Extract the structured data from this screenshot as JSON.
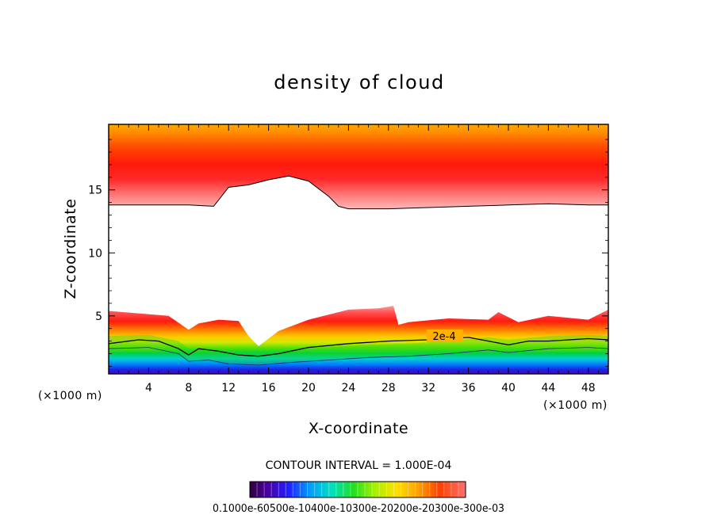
{
  "chart_data": {
    "type": "contour",
    "title": "density of cloud",
    "xlabel": "X-coordinate",
    "ylabel": "Z-coordinate",
    "x_unit": "(×1000 m)",
    "x_unit_right": "(×1000 m)",
    "xlim": [
      0,
      50
    ],
    "ylim": [
      0.4,
      20.2
    ],
    "x_ticks": [
      "4",
      "8",
      "12",
      "16",
      "20",
      "24",
      "28",
      "32",
      "36",
      "40",
      "44",
      "48"
    ],
    "y_ticks": [
      "5",
      "10",
      "15"
    ],
    "contour_interval_text": "CONTOUR INTERVAL = 1.000E-04",
    "contour_label": "2e-4",
    "colorbar_labels_text": "0.1000e-60500e-10400e-10300e-20200e-20300e-300e-03",
    "colorbar_min": 0.0001,
    "colorbar_max": 0.003,
    "upper_layer_base": {
      "x": [
        0,
        4,
        8,
        10.5,
        11,
        12,
        14,
        16,
        18,
        20,
        22,
        23,
        24,
        28,
        32,
        36,
        40,
        44,
        48,
        50
      ],
      "z": [
        13.8,
        13.8,
        13.8,
        13.7,
        14.2,
        15.2,
        15.4,
        15.8,
        16.1,
        15.7,
        14.5,
        13.7,
        13.5,
        13.5,
        13.6,
        13.7,
        13.8,
        13.9,
        13.8,
        13.8
      ]
    },
    "lower_layer_top": {
      "x": [
        0,
        3,
        6,
        8,
        9,
        11,
        13,
        14,
        15,
        17,
        20,
        24,
        27,
        28.5,
        29,
        30,
        34,
        38,
        39,
        41,
        44,
        48,
        50
      ],
      "z": [
        5.4,
        5.2,
        5.0,
        3.9,
        4.4,
        4.7,
        4.6,
        3.4,
        2.6,
        3.8,
        4.7,
        5.5,
        5.6,
        5.8,
        4.3,
        4.5,
        4.8,
        4.7,
        5.3,
        4.5,
        5.0,
        4.7,
        5.5
      ]
    },
    "contour_2e4": {
      "x": [
        0,
        3,
        5,
        7,
        8,
        9,
        11,
        13,
        15,
        17,
        20,
        24,
        28,
        32,
        36,
        38,
        40,
        42,
        44,
        48,
        50
      ],
      "z": [
        2.8,
        3.1,
        3.0,
        2.4,
        1.9,
        2.4,
        2.2,
        1.9,
        1.8,
        2.0,
        2.5,
        2.8,
        3.0,
        3.1,
        3.3,
        3.0,
        2.7,
        3.0,
        3.0,
        3.2,
        3.1
      ]
    },
    "green_band": {
      "x": [
        0,
        4,
        7,
        8,
        10,
        12,
        15,
        18,
        22,
        26,
        30,
        34,
        38,
        40,
        44,
        48,
        50
      ],
      "z": [
        2.4,
        2.5,
        2.0,
        1.4,
        1.5,
        1.2,
        1.1,
        1.3,
        1.5,
        1.7,
        1.8,
        2.0,
        2.3,
        2.1,
        2.4,
        2.5,
        2.4
      ]
    }
  }
}
